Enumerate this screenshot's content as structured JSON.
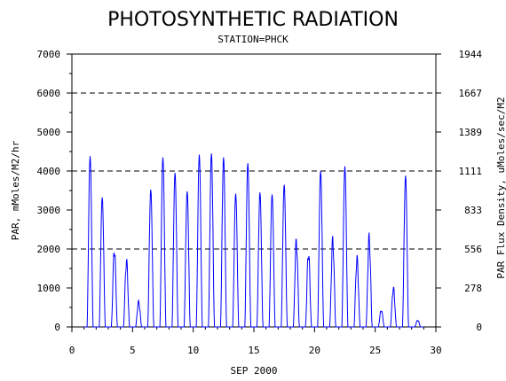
{
  "chart_data": {
    "type": "line",
    "title": "PHOTOSYNTHETIC RADIATION",
    "subtitle": "STATION=PHCK",
    "xlabel": "SEP 2000",
    "ylabel": "PAR, mMoles/M2/hr",
    "y2label": "PAR Flux Density, uMoles/sec/M2",
    "xlim": [
      0,
      30
    ],
    "ylim": [
      0,
      7000
    ],
    "x_ticks": [
      0,
      5,
      10,
      15,
      20,
      25,
      30
    ],
    "y_ticks": [
      0,
      1000,
      2000,
      3000,
      4000,
      5000,
      6000,
      7000
    ],
    "y2_tick_labels": [
      "0",
      "278",
      "556",
      "833",
      "1111",
      "1389",
      "1667",
      "1944"
    ],
    "gridlines_y": [
      2000,
      4000,
      6000
    ],
    "line_color": "#0000ff",
    "daily_peaks": [
      {
        "day": 1,
        "peak": 4380
      },
      {
        "day": 2,
        "peak": 3320
      },
      {
        "day": 3,
        "peak": 2100
      },
      {
        "day": 4,
        "peak": 1780
      },
      {
        "day": 5,
        "peak": 680
      },
      {
        "day": 6,
        "peak": 3520
      },
      {
        "day": 7,
        "peak": 4350
      },
      {
        "day": 8,
        "peak": 3950
      },
      {
        "day": 9,
        "peak": 3480
      },
      {
        "day": 10,
        "peak": 4420
      },
      {
        "day": 11,
        "peak": 4450
      },
      {
        "day": 12,
        "peak": 4350
      },
      {
        "day": 13,
        "peak": 3420
      },
      {
        "day": 14,
        "peak": 4200
      },
      {
        "day": 15,
        "peak": 3450
      },
      {
        "day": 16,
        "peak": 3400
      },
      {
        "day": 17,
        "peak": 3650
      },
      {
        "day": 18,
        "peak": 2330
      },
      {
        "day": 19,
        "peak": 2000
      },
      {
        "day": 20,
        "peak": 4000
      },
      {
        "day": 21,
        "peak": 2350
      },
      {
        "day": 22,
        "peak": 4120
      },
      {
        "day": 23,
        "peak": 1850
      },
      {
        "day": 24,
        "peak": 2420
      },
      {
        "day": 25,
        "peak": 450
      },
      {
        "day": 26,
        "peak": 1050
      },
      {
        "day": 27,
        "peak": 3880
      },
      {
        "day": 28,
        "peak": 180
      }
    ]
  }
}
